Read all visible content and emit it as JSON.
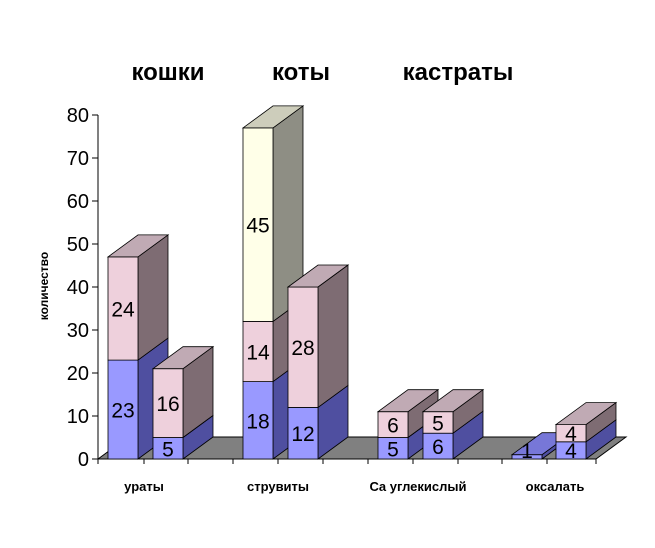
{
  "chart_data": {
    "type": "bar",
    "stacked": true,
    "three_d": true,
    "legend_labels": [
      "кошки",
      "коты",
      "кастраты"
    ],
    "ylabel": "количество",
    "ylim": [
      0,
      80
    ],
    "yticks": [
      0,
      10,
      20,
      30,
      40,
      50,
      60,
      70,
      80
    ],
    "categories": [
      "ураты",
      "струвиты",
      "Ca углекислый",
      "оксалать"
    ],
    "bars": [
      {
        "category": "ураты",
        "segments": [
          23,
          24
        ]
      },
      {
        "category": "ураты",
        "segments": [
          5,
          16
        ]
      },
      {
        "category": "струвиты",
        "segments": [
          18,
          14,
          45
        ]
      },
      {
        "category": "струвиты",
        "segments": [
          12,
          28
        ]
      },
      {
        "category": "Ca углекислый",
        "segments": [
          5,
          6
        ]
      },
      {
        "category": "Ca углекислый",
        "segments": [
          6,
          5
        ]
      },
      {
        "category": "оксалать",
        "segments": [
          1
        ]
      },
      {
        "category": "оксалать",
        "segments": [
          4,
          4
        ]
      }
    ],
    "segment_colors": [
      {
        "front": "#9999ff",
        "side": "#4f4fa0",
        "top": "#7777d8"
      },
      {
        "front": "#eed0dc",
        "side": "#7e6c73",
        "top": "#c0aab4"
      },
      {
        "front": "#ffffe8",
        "side": "#8e8e84",
        "top": "#cdcdbb"
      }
    ],
    "floor_color": "#808080"
  }
}
